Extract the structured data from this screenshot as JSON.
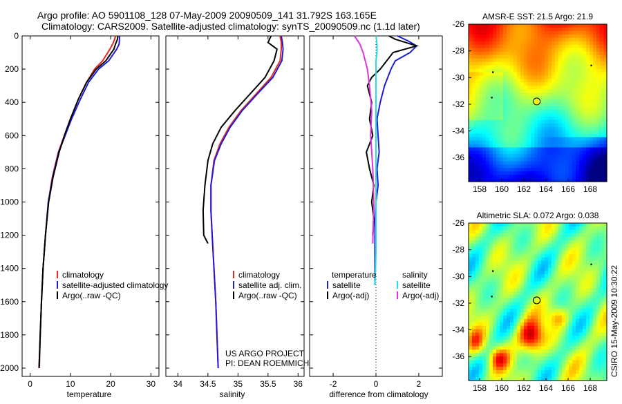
{
  "title_line1": "Argo profile: AO 5901108_128 07-May-2009 20090509_141 31.792S 163.165E",
  "title_line2": "Climatology: CARS2009. Satellite-adjusted climatology: synTS_20090509.nc (1.1d later)",
  "project_line1": "US ARGO PROJECT",
  "project_line2": "PI: DEAN ROEMMICH",
  "stamp": "CSIRO 15-May-2009 10:30:22",
  "colors": {
    "climatology": "#e8281e",
    "satellite": "#1c1cd6",
    "argo": "#000000",
    "sal_satellite": "#22e0e0",
    "sal_argo": "#e030e0"
  },
  "chart_data": [
    {
      "type": "line",
      "panel": "temperature",
      "xlabel": "temperature",
      "ylabel": "",
      "xlim": [
        -2,
        32
      ],
      "ylim": [
        2050,
        0
      ],
      "xticks": [
        "0",
        "10",
        "20",
        "30"
      ],
      "yticks": [
        "0",
        "200",
        "400",
        "600",
        "800",
        "1000",
        "1200",
        "1400",
        "1600",
        "1800",
        "2000"
      ],
      "legend": [
        "climatology",
        "satellite-adjusted climatology",
        "Argo(..raw -QC)"
      ],
      "series": [
        {
          "name": "climatology",
          "color_key": "climatology",
          "x": [
            21.2,
            21.0,
            20.5,
            19.8,
            18.0,
            16.0,
            14.0,
            12.0,
            10.0,
            8.5,
            7.0,
            5.5,
            4.5,
            3.8,
            3.2,
            2.8,
            2.5,
            2.3
          ],
          "y": [
            0,
            20,
            50,
            80,
            150,
            200,
            280,
            380,
            500,
            600,
            700,
            850,
            1000,
            1200,
            1400,
            1600,
            1800,
            2000
          ]
        },
        {
          "name": "satellite-adjusted climatology",
          "color_key": "satellite",
          "x": [
            22.2,
            22.2,
            22.1,
            21.5,
            19.5,
            17.0,
            14.5,
            12.5,
            10.3,
            8.7,
            7.1,
            5.6,
            4.5,
            3.8,
            3.2,
            2.8,
            2.5,
            2.2
          ],
          "y": [
            0,
            20,
            50,
            80,
            150,
            200,
            280,
            380,
            500,
            600,
            700,
            850,
            1000,
            1200,
            1400,
            1600,
            1800,
            2000
          ]
        },
        {
          "name": "Argo(..raw -QC)",
          "color_key": "argo",
          "x": [
            21.8,
            21.7,
            21.2,
            20.8,
            18.8,
            16.4,
            14.0,
            12.0,
            10.0,
            8.5,
            7.2,
            5.7,
            4.6,
            3.8,
            3.2,
            2.8,
            2.5,
            2.2
          ],
          "y": [
            0,
            20,
            50,
            80,
            150,
            200,
            280,
            380,
            500,
            600,
            700,
            850,
            1000,
            1200,
            1400,
            1600,
            1800,
            2000
          ]
        }
      ]
    },
    {
      "type": "line",
      "panel": "salinity",
      "xlabel": "salinity",
      "ylabel": "",
      "xlim": [
        33.8,
        36.1
      ],
      "ylim": [
        2050,
        0
      ],
      "xticks": [
        "34",
        "34.5",
        "35",
        "35.5",
        "36"
      ],
      "legend": [
        "climatology",
        "satellite adj. clim.",
        "Argo(..raw -QC)"
      ],
      "series": [
        {
          "name": "climatology",
          "color_key": "climatology",
          "x": [
            35.7,
            35.72,
            35.72,
            35.7,
            35.55,
            35.3,
            35.05,
            34.85,
            34.7,
            34.6,
            34.55,
            34.55,
            34.57,
            34.6,
            34.63,
            34.65,
            34.67
          ],
          "y": [
            0,
            40,
            80,
            150,
            250,
            350,
            450,
            550,
            650,
            750,
            900,
            1050,
            1200,
            1400,
            1600,
            1800,
            2000
          ]
        },
        {
          "name": "satellite adj. clim.",
          "color_key": "satellite",
          "x": [
            35.72,
            35.74,
            35.75,
            35.73,
            35.58,
            35.32,
            35.07,
            34.87,
            34.72,
            34.61,
            34.55,
            34.55,
            34.57,
            34.6,
            34.63,
            34.65,
            34.67
          ],
          "y": [
            0,
            40,
            80,
            150,
            250,
            350,
            450,
            550,
            650,
            750,
            900,
            1050,
            1200,
            1400,
            1600,
            1800,
            2000
          ]
        },
        {
          "name": "Argo(..raw -QC)",
          "color_key": "argo",
          "x": [
            35.55,
            35.5,
            35.65,
            35.6,
            35.45,
            35.2,
            34.95,
            34.72,
            34.58,
            34.5,
            34.45,
            34.42,
            34.43,
            34.5
          ],
          "y": [
            0,
            40,
            80,
            150,
            250,
            350,
            450,
            550,
            650,
            750,
            900,
            1050,
            1200,
            1250
          ]
        }
      ]
    },
    {
      "type": "line",
      "panel": "difference",
      "xlabel": "difference from climatology",
      "ylabel": "",
      "xlim": [
        -3.1,
        3.1
      ],
      "ylim": [
        2050,
        0
      ],
      "xticks": [
        "-2",
        "0",
        "2"
      ],
      "legend_headers": [
        "temperature",
        "salinity"
      ],
      "legend": [
        "satellite",
        "Argo(-adj)",
        "satellite",
        "Argo(-adj)"
      ],
      "series": [
        {
          "name": "satellite",
          "group": "temperature",
          "color_key": "satellite",
          "x": [
            1.0,
            1.5,
            1.9,
            1.6,
            0.9,
            0.7,
            0.4,
            0.2,
            0.05,
            0.1,
            0.15,
            0.05,
            0.1,
            0.0,
            -0.05,
            -0.05,
            -0.05
          ],
          "y": [
            0,
            30,
            60,
            100,
            150,
            200,
            300,
            400,
            500,
            600,
            700,
            800,
            900,
            1000,
            1100,
            1200,
            1500
          ]
        },
        {
          "name": "Argo(-adj)",
          "group": "temperature",
          "color_key": "argo",
          "x": [
            0.6,
            0.9,
            1.9,
            0.8,
            0.5,
            0.2,
            -0.2,
            -0.4,
            -0.2,
            -0.3,
            -0.15,
            -0.45,
            -0.3,
            -0.1,
            -0.2,
            -0.1,
            -0.15
          ],
          "y": [
            0,
            20,
            60,
            100,
            150,
            200,
            250,
            300,
            400,
            500,
            600,
            700,
            800,
            900,
            1000,
            1100,
            1200
          ]
        },
        {
          "name": "satellite",
          "group": "salinity",
          "color_key": "sal_satellite",
          "x": [
            0.0,
            0.05,
            0.05,
            0.0,
            0.0,
            0.0,
            0.0,
            0.0,
            0.0,
            0.0,
            0.0,
            -0.02,
            -0.05
          ],
          "y": [
            0,
            50,
            100,
            150,
            300,
            500,
            700,
            900,
            1100,
            1200,
            1300,
            1400,
            1500
          ]
        },
        {
          "name": "Argo(-adj)",
          "group": "salinity",
          "color_key": "sal_argo",
          "x": [
            -1.0,
            -0.9,
            -0.75,
            -0.6,
            -0.5,
            -0.4,
            -0.3,
            -0.2,
            -0.25,
            -0.15,
            -0.1,
            -0.12,
            -0.15
          ],
          "y": [
            0,
            20,
            50,
            100,
            150,
            200,
            300,
            450,
            600,
            800,
            1000,
            1100,
            1250
          ]
        }
      ]
    },
    {
      "type": "heatmap",
      "panel": "sst_map",
      "title": "AMSR-E SST: 21.5 Argo: 21.9",
      "xlim": [
        157,
        169.5
      ],
      "ylim": [
        -37.8,
        -26
      ],
      "xticks": [
        "158",
        "160",
        "162",
        "164",
        "166",
        "168"
      ],
      "yticks": [
        "-26",
        "-28",
        "-30",
        "-32",
        "-34",
        "-36"
      ],
      "argo_position": {
        "lon": 163.165,
        "lat": -31.792
      }
    },
    {
      "type": "heatmap",
      "panel": "sla_map",
      "title": "Altimetric SLA: 0.072 Argo: 0.038",
      "xlim": [
        157,
        169.5
      ],
      "ylim": [
        -37.8,
        -26
      ],
      "xticks": [
        "158",
        "160",
        "162",
        "164",
        "166",
        "168"
      ],
      "yticks": [
        "-26",
        "-28",
        "-30",
        "-32",
        "-34",
        "-36"
      ],
      "argo_position": {
        "lon": 163.165,
        "lat": -31.792
      }
    }
  ]
}
